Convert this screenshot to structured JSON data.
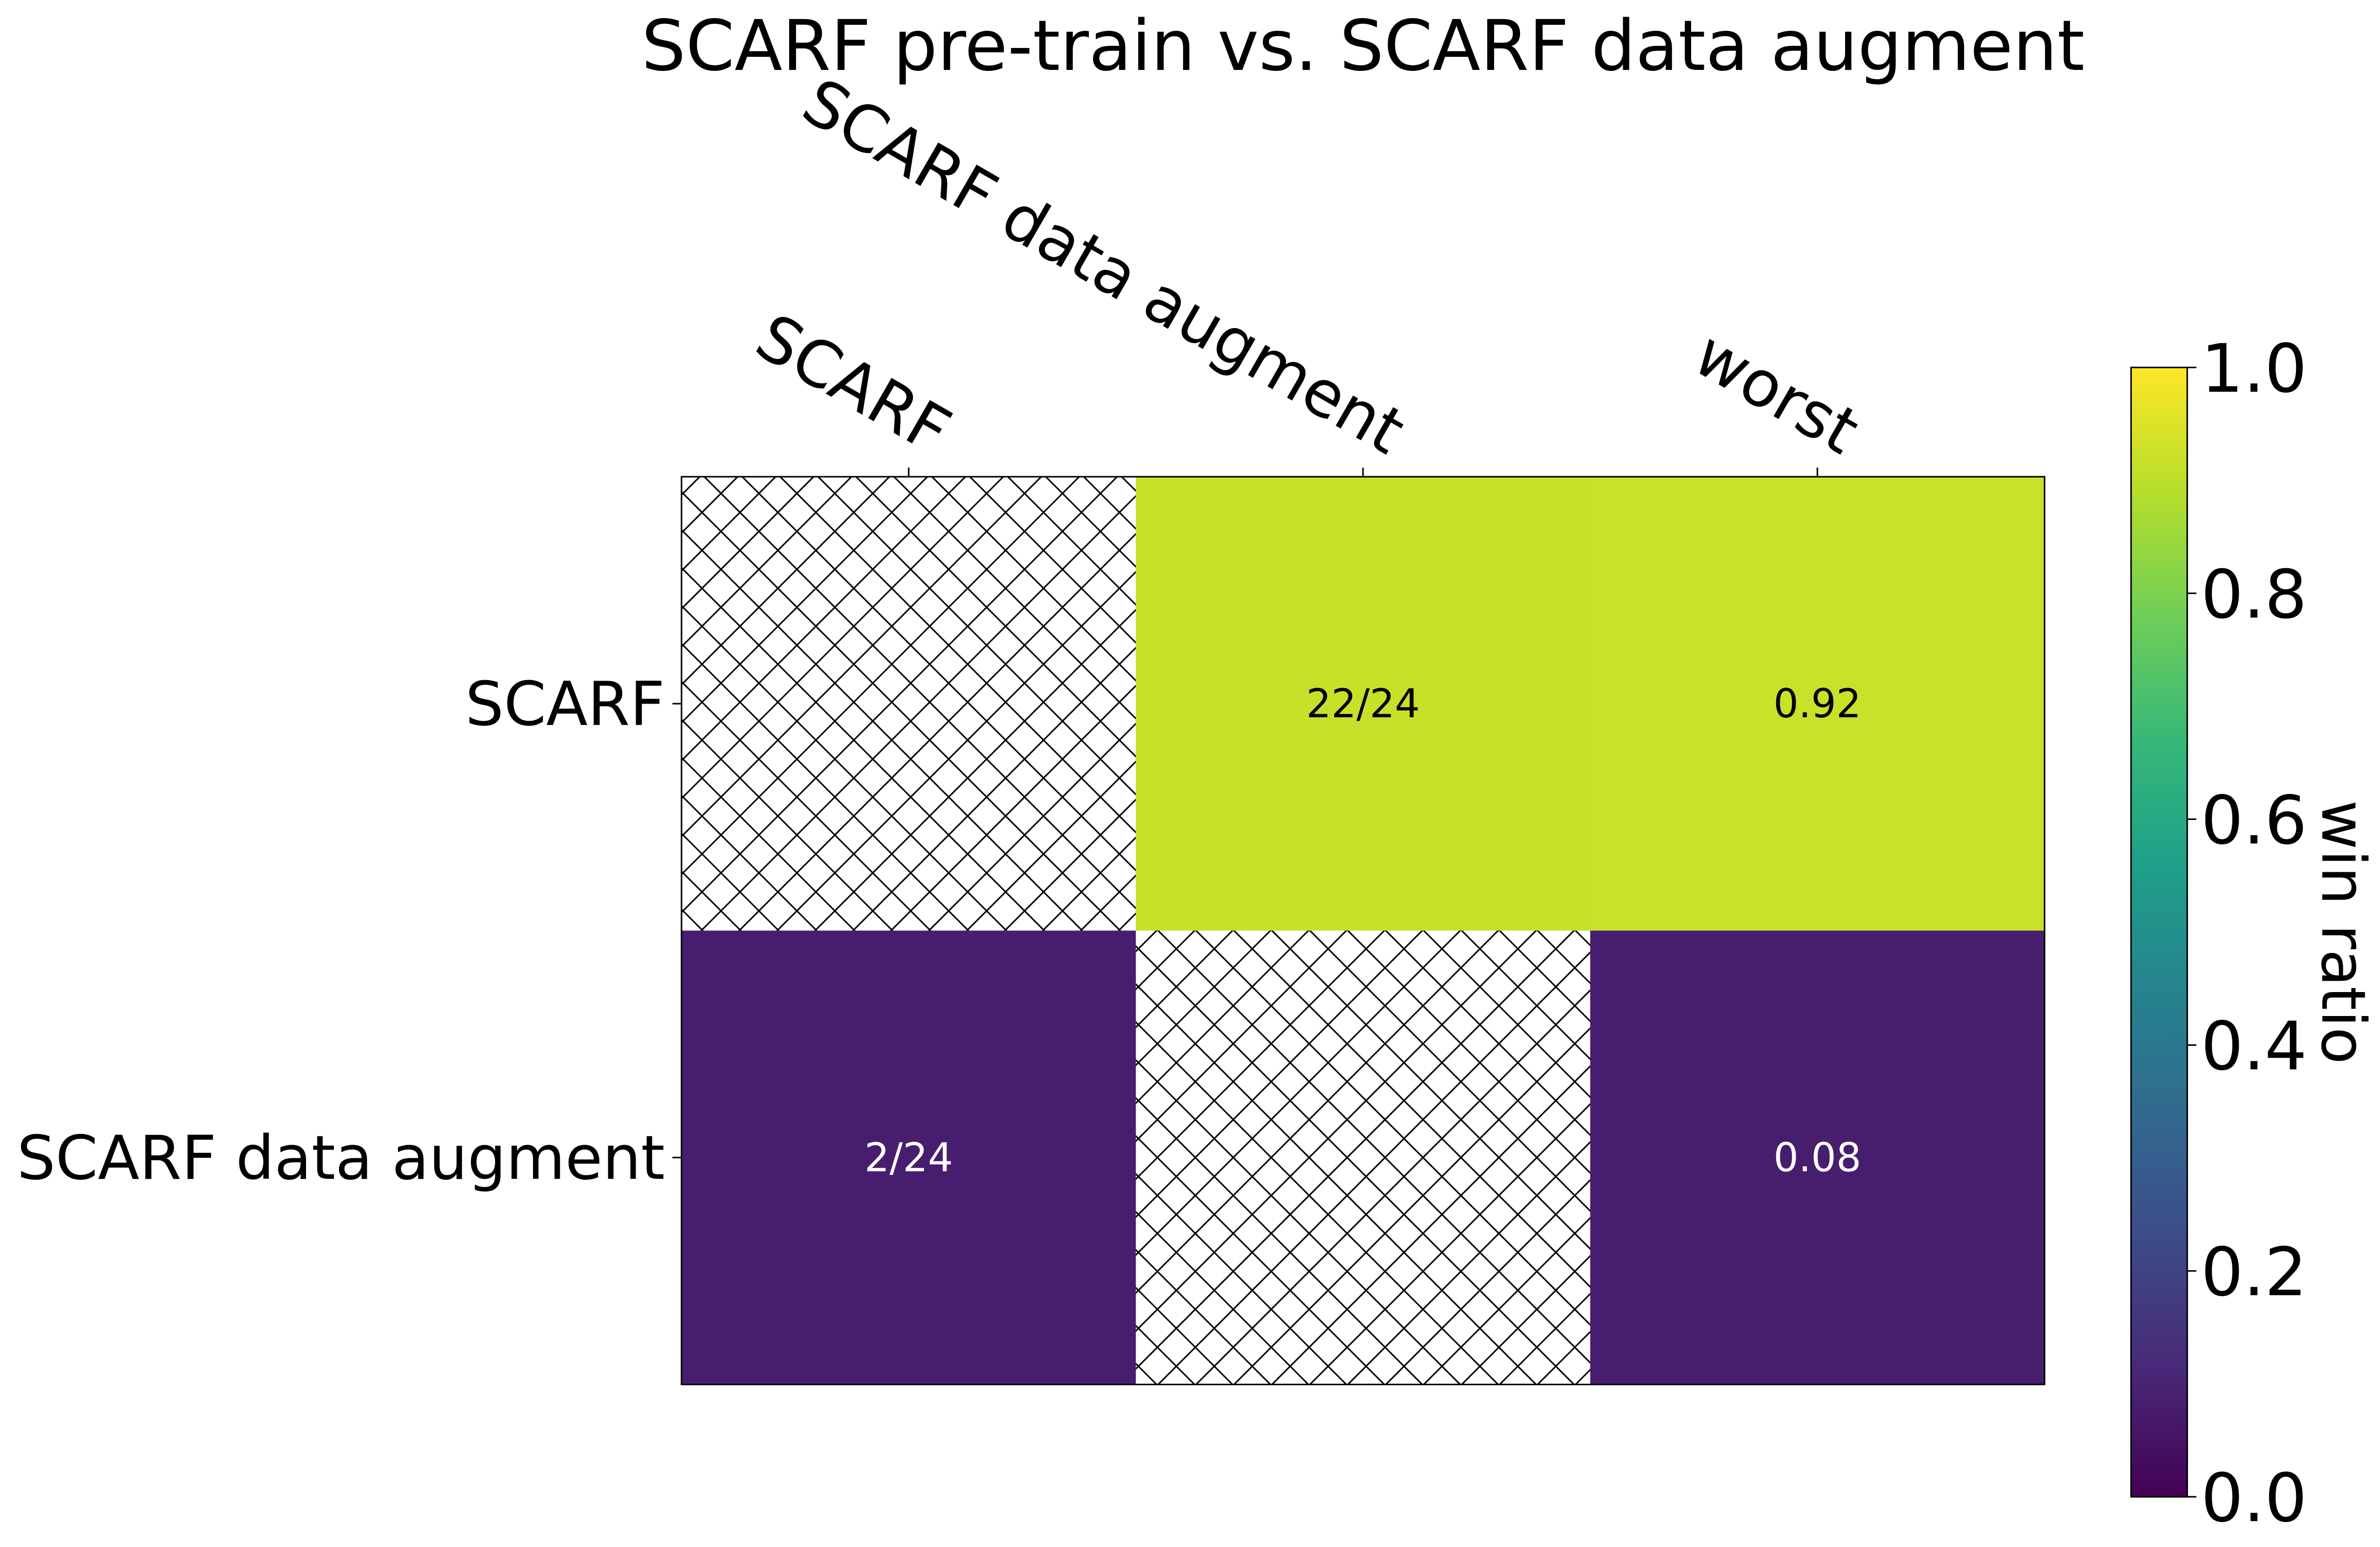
{
  "chart_data": {
    "type": "heatmap",
    "title": "SCARF pre-train vs. SCARF data augment",
    "x_categories": [
      "SCARF",
      "SCARF data augment",
      "worst"
    ],
    "y_categories": [
      "SCARF",
      "SCARF data augment"
    ],
    "values": [
      [
        null,
        0.9167,
        0.92
      ],
      [
        0.0833,
        null,
        0.08
      ]
    ],
    "value_labels": [
      [
        null,
        "22/24",
        null
      ],
      [
        "2/24",
        null,
        null
      ]
    ],
    "colormap": "viridis",
    "clim": [
      0,
      1
    ],
    "colorbar_ticks": [
      {
        "value": 0,
        "label": "0.0"
      },
      0.2,
      0.4,
      0.6,
      0.8,
      {
        "value": 1,
        "label": "1.0"
      }
    ],
    "colorbar_label": "win ratio",
    "missing_hatch": true
  }
}
